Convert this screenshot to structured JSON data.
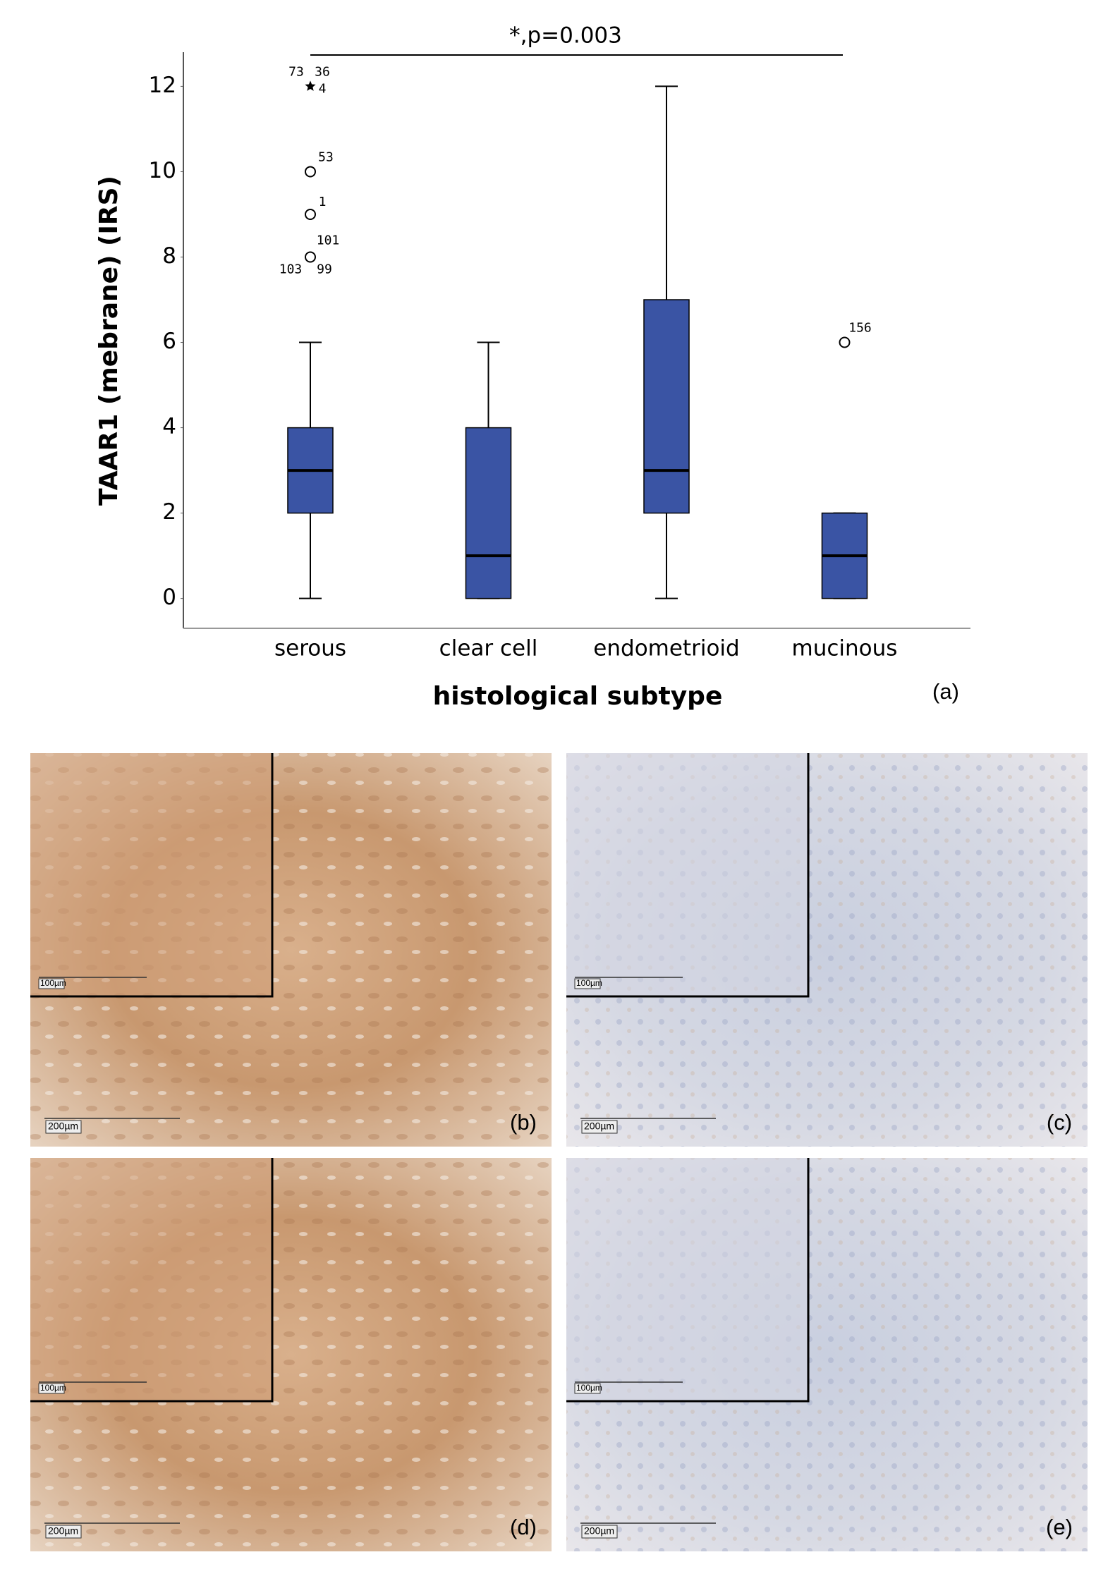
{
  "chart_data": {
    "type": "box",
    "annotation": "*,p=0.003",
    "y_label": "TAAR1 (mebrane) (IRS)",
    "x_label": "histological subtype",
    "panel_label": "(a)",
    "color": "#3a54a4",
    "categories": [
      "serous",
      "clear cell",
      "endometrioid",
      "mucinous"
    ],
    "ylim": [
      -0.7,
      12.8
    ],
    "yticks": [
      0,
      2,
      4,
      6,
      8,
      10,
      12
    ],
    "boxes": [
      {
        "min": 0,
        "q1": 2,
        "median": 3,
        "q3": 4,
        "max": 6,
        "outliers": [
          {
            "value": 12,
            "marker": "star",
            "labels": [
              "73",
              "36",
              "4"
            ]
          },
          {
            "value": 10,
            "marker": "circle",
            "labels": [
              "53"
            ]
          },
          {
            "value": 9,
            "marker": "circle",
            "labels": [
              "1"
            ]
          },
          {
            "value": 8,
            "marker": "circle",
            "labels": [
              "101",
              "103",
              "99"
            ]
          }
        ]
      },
      {
        "min": 0,
        "q1": 0,
        "median": 1,
        "q3": 4,
        "max": 6,
        "outliers": []
      },
      {
        "min": 0,
        "q1": 2,
        "median": 3,
        "q3": 7,
        "max": 12,
        "outliers": []
      },
      {
        "min": 0,
        "q1": 0,
        "median": 1,
        "q3": 2,
        "max": 2,
        "outliers": [
          {
            "value": 6,
            "marker": "circle",
            "labels": [
              "156"
            ]
          }
        ]
      }
    ]
  },
  "panels": [
    {
      "label": "(b)",
      "inset_scale": "100µm",
      "scale": "200µm",
      "stain": "strong"
    },
    {
      "label": "(c)",
      "inset_scale": "100µm",
      "scale": "200µm",
      "stain": "weak"
    },
    {
      "label": "(d)",
      "inset_scale": "100µm",
      "scale": "200µm",
      "stain": "strong"
    },
    {
      "label": "(e)",
      "inset_scale": "100µm",
      "scale": "200µm",
      "stain": "weak"
    }
  ]
}
